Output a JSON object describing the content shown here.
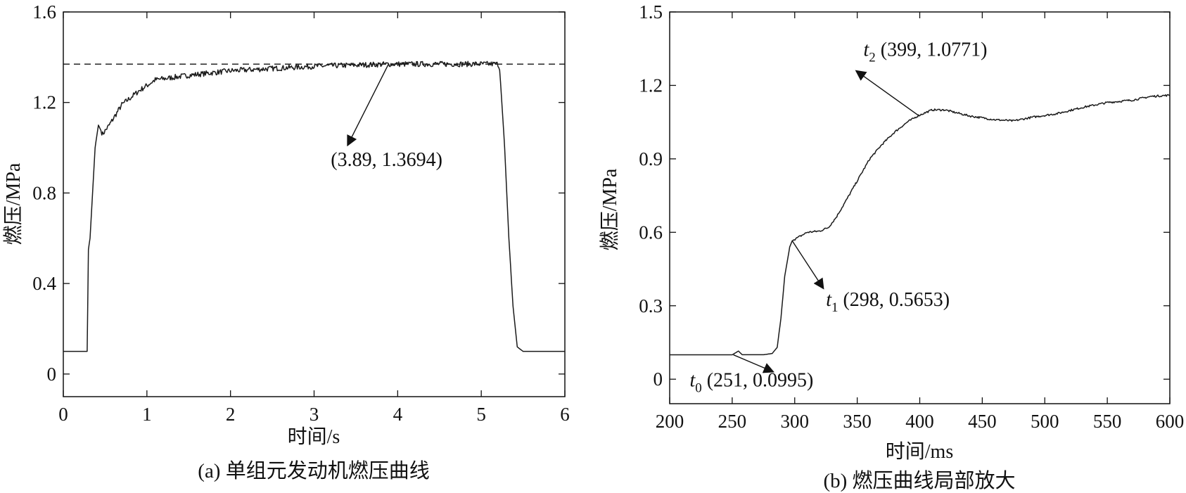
{
  "chart_data": [
    {
      "id": "a",
      "type": "line",
      "xlabel": "时间/s",
      "ylabel": "燃压/MPa",
      "caption": "(a) 单组元发动机燃压曲线",
      "xlim": [
        0,
        6
      ],
      "ylim": [
        -0.1,
        1.6
      ],
      "xticks": [
        0,
        1,
        2,
        3,
        4,
        5,
        6
      ],
      "yticks": [
        0,
        0.4,
        0.8,
        1.2,
        1.6
      ],
      "xtick_labels": [
        "0",
        "1",
        "2",
        "3",
        "4",
        "5",
        "6"
      ],
      "ytick_labels": [
        "0",
        "0.4",
        "0.8",
        "1.2",
        "1.6"
      ],
      "reference_line": {
        "y": 1.3694,
        "style": "dashed"
      },
      "series": [
        {
          "noise": 0.012,
          "noise_range": [
            0.45,
            5.22
          ],
          "points": [
            [
              0,
              0.1
            ],
            [
              0.27,
              0.1
            ],
            [
              0.285,
              0.1
            ],
            [
              0.3,
              0.55
            ],
            [
              0.32,
              0.6
            ],
            [
              0.35,
              0.8
            ],
            [
              0.38,
              1.0
            ],
            [
              0.42,
              1.1
            ],
            [
              0.47,
              1.06
            ],
            [
              0.55,
              1.1
            ],
            [
              0.7,
              1.19
            ],
            [
              0.9,
              1.25
            ],
            [
              1.1,
              1.3
            ],
            [
              1.5,
              1.32
            ],
            [
              2.0,
              1.34
            ],
            [
              2.5,
              1.35
            ],
            [
              3.0,
              1.36
            ],
            [
              3.89,
              1.3694
            ],
            [
              4.5,
              1.37
            ],
            [
              5.0,
              1.37
            ],
            [
              5.2,
              1.37
            ],
            [
              5.22,
              1.35
            ],
            [
              5.28,
              1.0
            ],
            [
              5.33,
              0.6
            ],
            [
              5.38,
              0.3
            ],
            [
              5.43,
              0.12
            ],
            [
              5.5,
              0.1
            ],
            [
              6.0,
              0.1
            ]
          ]
        }
      ],
      "annotations": [
        {
          "label": "(3.89, 1.3694)",
          "point": [
            3.89,
            1.3694
          ],
          "text_at": [
            3.2,
            0.92
          ],
          "arrow_from": [
            3.4,
            1.01
          ],
          "arrow_to": [
            3.89,
            1.3694
          ]
        }
      ]
    },
    {
      "id": "b",
      "type": "line",
      "xlabel": "时间/ms",
      "ylabel": "燃压/MPa",
      "caption": "(b) 燃压曲线局部放大",
      "xlim": [
        200,
        600
      ],
      "ylim": [
        -0.1,
        1.5
      ],
      "xticks": [
        200,
        250,
        300,
        350,
        400,
        450,
        500,
        550,
        600
      ],
      "yticks": [
        0,
        0.3,
        0.6,
        0.9,
        1.2,
        1.5
      ],
      "xtick_labels": [
        "200",
        "250",
        "300",
        "350",
        "400",
        "450",
        "500",
        "550",
        "600"
      ],
      "ytick_labels": [
        "0",
        "0.3",
        "0.6",
        "0.9",
        "1.2",
        "1.5"
      ],
      "series": [
        {
          "noise": 0.004,
          "noise_range": [
            300,
            600
          ],
          "points": [
            [
              200,
              0.0995
            ],
            [
              250,
              0.0995
            ],
            [
              255,
              0.115
            ],
            [
              258,
              0.1
            ],
            [
              275,
              0.1
            ],
            [
              282,
              0.105
            ],
            [
              286,
              0.13
            ],
            [
              289,
              0.25
            ],
            [
              292,
              0.42
            ],
            [
              296,
              0.54
            ],
            [
              298,
              0.5653
            ],
            [
              303,
              0.58
            ],
            [
              310,
              0.6
            ],
            [
              320,
              0.605
            ],
            [
              327,
              0.62
            ],
            [
              333,
              0.66
            ],
            [
              340,
              0.72
            ],
            [
              350,
              0.81
            ],
            [
              360,
              0.9
            ],
            [
              370,
              0.96
            ],
            [
              380,
              1.01
            ],
            [
              390,
              1.05
            ],
            [
              399,
              1.0771
            ],
            [
              410,
              1.1
            ],
            [
              420,
              1.1
            ],
            [
              440,
              1.075
            ],
            [
              460,
              1.06
            ],
            [
              475,
              1.055
            ],
            [
              490,
              1.07
            ],
            [
              510,
              1.085
            ],
            [
              530,
              1.11
            ],
            [
              550,
              1.13
            ],
            [
              570,
              1.14
            ],
            [
              585,
              1.155
            ],
            [
              600,
              1.16
            ]
          ]
        }
      ],
      "annotations": [
        {
          "name": "t",
          "sub": "2",
          "rest": " (399, 1.0771)",
          "point": [
            399,
            1.0771
          ],
          "text_at": [
            355,
            1.32
          ],
          "arrow_from": [
            399,
            1.0771
          ],
          "arrow_to": [
            349,
            1.26
          ]
        },
        {
          "name": "t",
          "sub": "1",
          "rest": " (298, 0.5653)",
          "point": [
            298,
            0.5653
          ],
          "text_at": [
            325,
            0.3
          ],
          "arrow_from": [
            298,
            0.5653
          ],
          "arrow_to": [
            323,
            0.37
          ]
        },
        {
          "name": "t",
          "sub": "0",
          "rest": " (251, 0.0995)",
          "point": [
            251,
            0.0995
          ],
          "text_at": [
            216,
            -0.03
          ],
          "arrow_from": [
            251,
            0.0995
          ],
          "arrow_to": [
            283,
            0.03
          ]
        }
      ]
    }
  ]
}
